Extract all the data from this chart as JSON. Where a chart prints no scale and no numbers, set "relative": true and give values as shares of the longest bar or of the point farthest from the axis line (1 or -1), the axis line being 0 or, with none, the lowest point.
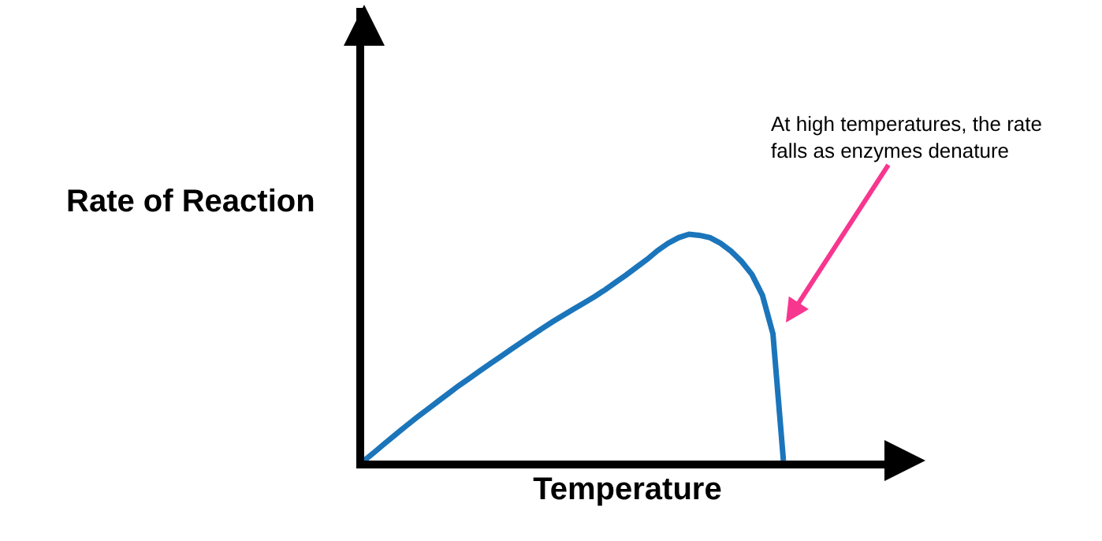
{
  "chart_data": {
    "type": "line",
    "relative": true,
    "xlabel": "Temperature",
    "ylabel": "Rate of Reaction",
    "categories": [
      null,
      null,
      null,
      null,
      null,
      null,
      null,
      null,
      null,
      null,
      null,
      null,
      null,
      null,
      null,
      null,
      null,
      null,
      null,
      null,
      null,
      null,
      null,
      null,
      null,
      null,
      null,
      null,
      null,
      null,
      null,
      null,
      null,
      null,
      null,
      null,
      null,
      null,
      null,
      null,
      null
    ],
    "series": [
      {
        "color": "#1b75bb",
        "values": [
          0,
          0.038,
          0.077,
          0.115,
          0.153,
          0.19,
          0.225,
          0.26,
          0.295,
          0.33,
          0.362,
          0.395,
          0.427,
          0.459,
          0.491,
          0.522,
          0.553,
          0.584,
          0.614,
          0.642,
          0.67,
          0.697,
          0.725,
          0.755,
          0.788,
          0.82,
          0.855,
          0.889,
          0.928,
          0.96,
          0.985,
          1,
          0.995,
          0.985,
          0.96,
          0.925,
          0.88,
          0.822,
          0.73,
          0.56,
          0
        ]
      }
    ],
    "annotations": [
      "At high temperatures, the rate falls as enzymes denature"
    ],
    "marker": "none",
    "line_style": "solid"
  }
}
